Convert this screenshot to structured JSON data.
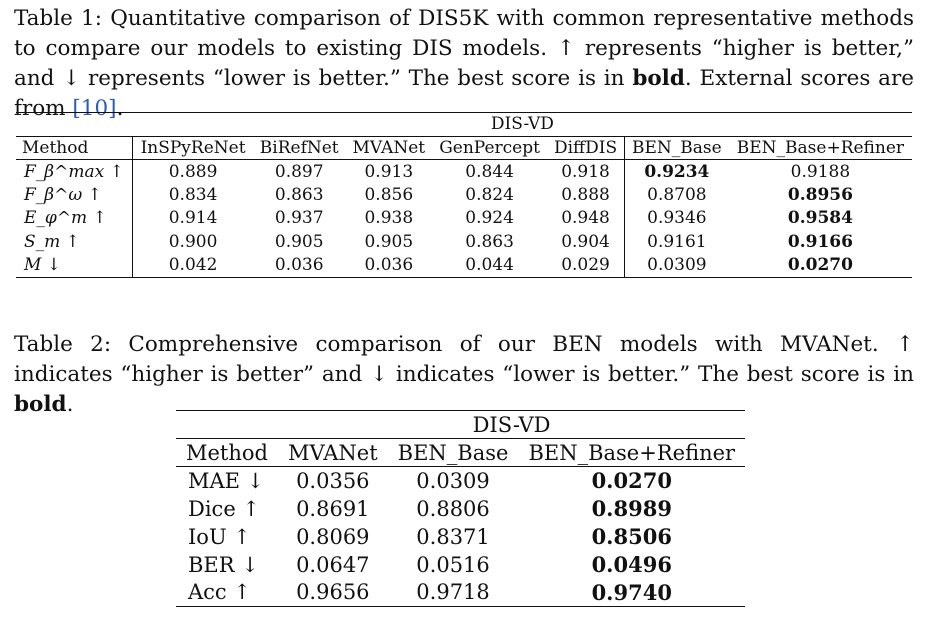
{
  "table1": {
    "caption_label": "Table 1:",
    "caption_text_1": "Quantitative comparison of DIS5K with common representative methods to compare our models to existing DIS models. ↑ represents “higher is better,” and ↓ represents “lower is better.” The best score is in",
    "caption_bold": "bold",
    "caption_text_2": ". External scores are from",
    "caption_cite": "[10]",
    "caption_end": ".",
    "group_header": "DIS-VD",
    "columns": [
      "Method",
      "InSPyReNet",
      "BiRefNet",
      "MVANet",
      "GenPercept",
      "DiffDIS",
      "BEN_Base",
      "BEN_Base+Refiner"
    ],
    "rows": [
      {
        "metric": "F_β^max ↑",
        "values": [
          "0.889",
          "0.897",
          "0.913",
          "0.844",
          "0.918",
          "0.9234",
          "0.9188"
        ],
        "best": 5
      },
      {
        "metric": "F_β^ω ↑",
        "values": [
          "0.834",
          "0.863",
          "0.856",
          "0.824",
          "0.888",
          "0.8708",
          "0.8956"
        ],
        "best": 6
      },
      {
        "metric": "E_φ^m ↑",
        "values": [
          "0.914",
          "0.937",
          "0.938",
          "0.924",
          "0.948",
          "0.9346",
          "0.9584"
        ],
        "best": 6
      },
      {
        "metric": "S_m ↑",
        "values": [
          "0.900",
          "0.905",
          "0.905",
          "0.863",
          "0.904",
          "0.9161",
          "0.9166"
        ],
        "best": 6
      },
      {
        "metric": "M ↓",
        "values": [
          "0.042",
          "0.036",
          "0.036",
          "0.044",
          "0.029",
          "0.0309",
          "0.0270"
        ],
        "best": 6
      }
    ]
  },
  "table2": {
    "caption_label": "Table 2:",
    "caption_text_1": "Comprehensive comparison of our BEN models with MVANet. ↑ indicates “higher is better” and ↓ indicates “lower is better.” The best score is in",
    "caption_bold": "bold",
    "caption_end": ".",
    "group_header": "DIS-VD",
    "columns": [
      "Method",
      "MVANet",
      "BEN_Base",
      "BEN_Base+Refiner"
    ],
    "rows": [
      {
        "metric": "MAE ↓",
        "values": [
          "0.0356",
          "0.0309",
          "0.0270"
        ],
        "best": 2
      },
      {
        "metric": "Dice ↑",
        "values": [
          "0.8691",
          "0.8806",
          "0.8989"
        ],
        "best": 2
      },
      {
        "metric": "IoU ↑",
        "values": [
          "0.8069",
          "0.8371",
          "0.8506"
        ],
        "best": 2
      },
      {
        "metric": "BER ↓",
        "values": [
          "0.0647",
          "0.0516",
          "0.0496"
        ],
        "best": 2
      },
      {
        "metric": "Acc ↑",
        "values": [
          "0.9656",
          "0.9718",
          "0.9740"
        ],
        "best": 2
      }
    ]
  }
}
